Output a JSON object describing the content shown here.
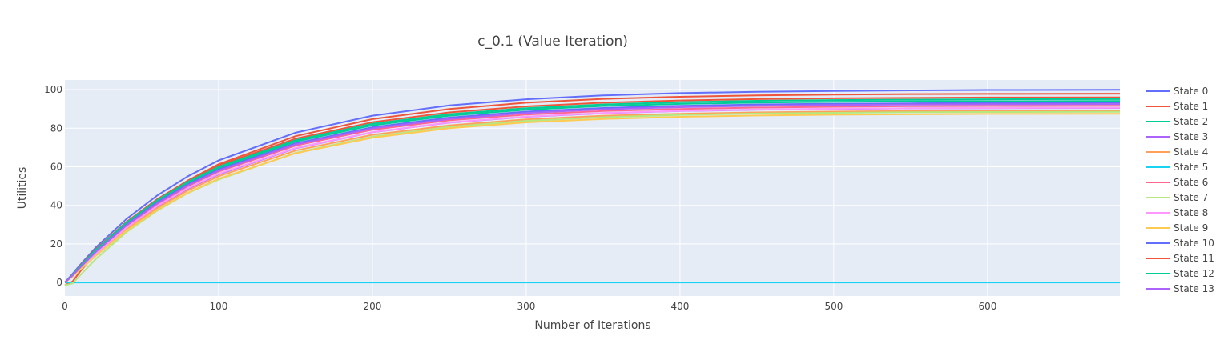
{
  "chart_data": {
    "type": "line",
    "title": "c_0.1 (Value Iteration)",
    "xlabel": "Number of Iterations",
    "ylabel": "Utilities",
    "xlim": [
      0,
      686
    ],
    "ylim": [
      -7,
      105
    ],
    "x_ticks": [
      0,
      100,
      200,
      300,
      400,
      500,
      600
    ],
    "y_ticks": [
      0,
      20,
      40,
      60,
      80,
      100
    ],
    "grid": true,
    "legend": "right",
    "colors": {
      "plot_background": "#E5ECF6",
      "grid": "#FFFFFF",
      "text": "#444444"
    },
    "series": [
      {
        "name": "State 0",
        "color": "#636EFA",
        "x": [
          0,
          5,
          10,
          20,
          40,
          60,
          80,
          100,
          150,
          200,
          250,
          300,
          350,
          400,
          450,
          500,
          550,
          600,
          686
        ],
        "y": [
          0,
          4.5,
          9.2,
          18.1,
          32.9,
          45.1,
          55.1,
          63.3,
          77.7,
          86.5,
          91.8,
          95.0,
          97.0,
          98.2,
          98.9,
          99.3,
          99.6,
          99.8,
          99.9
        ]
      },
      {
        "name": "State 1",
        "color": "#EF553B",
        "x": [
          0,
          5,
          10,
          20,
          40,
          60,
          80,
          100,
          150,
          200,
          250,
          300,
          350,
          400,
          450,
          500,
          550,
          600,
          686
        ],
        "y": [
          -1.5,
          0.5,
          5.8,
          15.0,
          30.2,
          42.8,
          52.9,
          61.3,
          75.9,
          84.7,
          90.0,
          93.2,
          95.2,
          96.3,
          97.0,
          97.4,
          97.7,
          97.8,
          97.9
        ]
      },
      {
        "name": "State 2",
        "color": "#00CC96",
        "x": [
          0,
          5,
          10,
          20,
          40,
          60,
          80,
          100,
          150,
          200,
          250,
          300,
          350,
          400,
          450,
          500,
          550,
          600,
          686
        ],
        "y": [
          0,
          3.8,
          8.2,
          16.6,
          30.6,
          42.1,
          51.6,
          59.3,
          73.1,
          81.5,
          86.5,
          89.6,
          91.5,
          92.6,
          93.3,
          93.7,
          93.9,
          94.0,
          94.1
        ]
      },
      {
        "name": "State 3",
        "color": "#AB63FA",
        "x": [
          0,
          5,
          10,
          20,
          40,
          60,
          80,
          100,
          150,
          200,
          250,
          300,
          350,
          400,
          450,
          500,
          550,
          600,
          686
        ],
        "y": [
          0,
          3.3,
          7.1,
          14.6,
          28.1,
          39.4,
          48.6,
          56.1,
          69.6,
          77.9,
          82.9,
          85.9,
          87.8,
          88.9,
          89.6,
          90.0,
          90.3,
          90.4,
          90.5
        ]
      },
      {
        "name": "State 4",
        "color": "#FFA15A",
        "x": [
          0,
          5,
          10,
          20,
          40,
          60,
          80,
          100,
          150,
          200,
          250,
          300,
          350,
          400,
          450,
          500,
          550,
          600,
          686
        ],
        "y": [
          0,
          3.2,
          7.0,
          14.3,
          27.6,
          38.6,
          47.7,
          55.1,
          68.4,
          76.6,
          81.5,
          84.6,
          86.4,
          87.5,
          88.2,
          88.6,
          88.9,
          89.0,
          89.1
        ]
      },
      {
        "name": "State 5",
        "color": "#19D3F3",
        "x": [
          0,
          686
        ],
        "y": [
          0,
          0
        ]
      },
      {
        "name": "State 6",
        "color": "#FF6692",
        "x": [
          0,
          5,
          10,
          20,
          40,
          60,
          80,
          100,
          150,
          200,
          250,
          300,
          350,
          400,
          450,
          500,
          550,
          600,
          686
        ],
        "y": [
          0,
          3.5,
          7.6,
          15.4,
          29.1,
          40.6,
          49.9,
          57.5,
          71.0,
          79.2,
          84.1,
          87.1,
          88.9,
          90.0,
          90.7,
          91.1,
          91.4,
          91.5,
          91.6
        ]
      },
      {
        "name": "State 7",
        "color": "#B6E880",
        "x": [
          0,
          5,
          10,
          20,
          40,
          60,
          80,
          100,
          150,
          200,
          250,
          300,
          350,
          400,
          450,
          500,
          550,
          600,
          686
        ],
        "y": [
          -1.5,
          -0.5,
          3.8,
          12.1,
          26.1,
          37.2,
          46.4,
          53.4,
          67.2,
          75.6,
          80.7,
          83.8,
          85.7,
          86.9,
          87.6,
          88.0,
          88.3,
          88.4,
          88.5
        ]
      },
      {
        "name": "State 8",
        "color": "#FF97FF",
        "x": [
          0,
          5,
          10,
          20,
          40,
          60,
          80,
          100,
          150,
          200,
          250,
          300,
          350,
          400,
          450,
          500,
          550,
          600,
          686
        ],
        "y": [
          0,
          3.4,
          7.3,
          14.9,
          28.4,
          39.7,
          48.9,
          56.4,
          69.8,
          78.0,
          83.0,
          86.0,
          87.9,
          89.0,
          89.7,
          90.1,
          90.3,
          90.5,
          90.6
        ]
      },
      {
        "name": "State 9",
        "color": "#FECB52",
        "x": [
          0,
          5,
          10,
          20,
          40,
          60,
          80,
          100,
          150,
          200,
          250,
          300,
          350,
          400,
          450,
          500,
          550,
          600,
          686
        ],
        "y": [
          0,
          3.1,
          6.7,
          13.8,
          26.8,
          37.6,
          46.5,
          53.8,
          67.0,
          75.1,
          80.0,
          83.0,
          84.8,
          85.9,
          86.6,
          87.0,
          87.2,
          87.4,
          87.5
        ]
      },
      {
        "name": "State 10",
        "color": "#636EFA",
        "x": [
          0,
          5,
          10,
          20,
          40,
          60,
          80,
          100,
          150,
          200,
          250,
          300,
          350,
          400,
          450,
          500,
          550,
          600,
          686
        ],
        "y": [
          0,
          3.7,
          8.0,
          16.2,
          30.0,
          41.5,
          50.9,
          58.6,
          72.2,
          80.5,
          85.5,
          88.6,
          90.5,
          91.6,
          92.3,
          92.7,
          92.9,
          93.1,
          93.2
        ]
      },
      {
        "name": "State 11",
        "color": "#EF553B",
        "x": [
          0,
          5,
          10,
          20,
          40,
          60,
          80,
          100,
          150,
          200,
          250,
          300,
          350,
          400,
          450,
          500,
          550,
          600,
          686
        ],
        "y": [
          0,
          4.0,
          8.6,
          17.1,
          31.4,
          43.2,
          52.8,
          60.6,
          74.6,
          83.1,
          88.2,
          91.3,
          93.2,
          94.4,
          95.1,
          95.5,
          95.7,
          95.9,
          96.0
        ]
      },
      {
        "name": "State 12",
        "color": "#00CC96",
        "x": [
          0,
          5,
          10,
          20,
          40,
          60,
          80,
          100,
          150,
          200,
          250,
          300,
          350,
          400,
          450,
          500,
          550,
          600,
          686
        ],
        "y": [
          0,
          3.9,
          8.4,
          16.8,
          31.0,
          42.6,
          52.2,
          60.0,
          73.8,
          82.3,
          87.3,
          90.4,
          92.3,
          93.5,
          94.2,
          94.6,
          94.8,
          95.0,
          95.1
        ]
      },
      {
        "name": "State 13",
        "color": "#AB63FA",
        "x": [
          0,
          5,
          10,
          20,
          40,
          60,
          80,
          100,
          150,
          200,
          250,
          300,
          350,
          400,
          450,
          500,
          550,
          600,
          686
        ],
        "y": [
          0,
          3.6,
          7.8,
          15.8,
          29.6,
          41.0,
          50.4,
          58.0,
          71.6,
          79.9,
          84.8,
          87.9,
          89.8,
          90.9,
          91.6,
          92.0,
          92.3,
          92.4,
          92.5
        ]
      }
    ]
  }
}
